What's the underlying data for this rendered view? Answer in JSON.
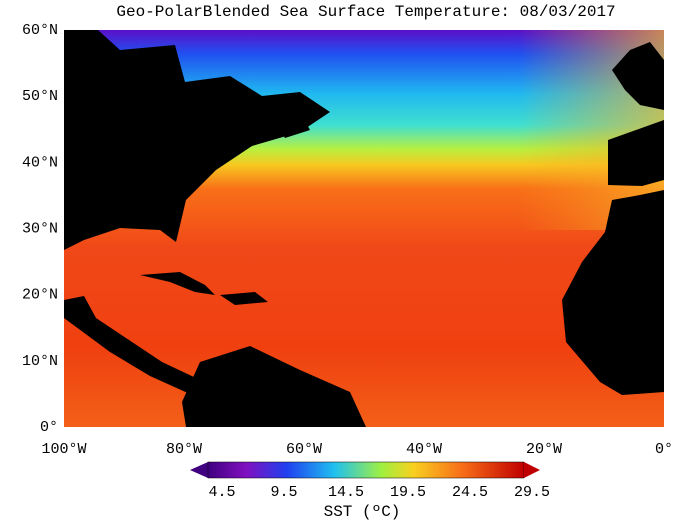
{
  "title": "Geo-PolarBlended Sea Surface Temperature: 08/03/2017",
  "latitude_labels": [
    "60°N",
    "50°N",
    "40°N",
    "30°N",
    "20°N",
    "10°N",
    "0°"
  ],
  "longitude_labels": [
    "100°W",
    "80°W",
    "60°W",
    "40°W",
    "20°W",
    "0°"
  ],
  "colorbar": {
    "ticks": [
      "4.5",
      "9.5",
      "14.5",
      "19.5",
      "24.5",
      "29.5"
    ],
    "label": "SST (ºC)"
  }
}
